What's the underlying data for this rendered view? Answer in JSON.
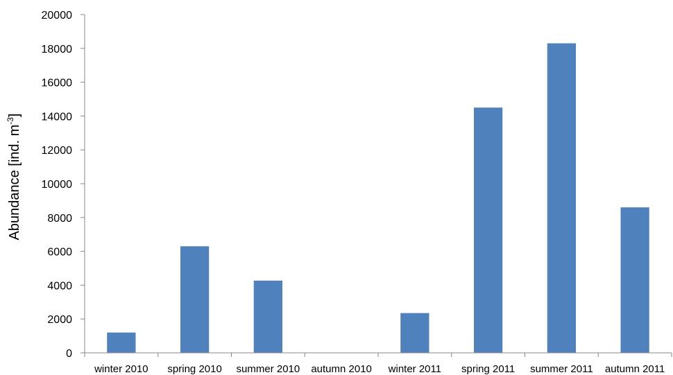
{
  "chart_data": {
    "type": "bar",
    "title": "",
    "xlabel": "",
    "ylabel": "Abundance [ind. m",
    "ylabel_superscript": "-3",
    "ylabel_suffix": "]",
    "ylim": [
      0,
      20000
    ],
    "yticks": [
      "0",
      "2000",
      "4000",
      "6000",
      "8000",
      "10000",
      "12000",
      "14000",
      "16000",
      "18000",
      "20000"
    ],
    "grid": false,
    "categories": [
      "winter 2010",
      "spring 2010",
      "summer 2010",
      "autumn 2010",
      "winter 2011",
      "spring 2011",
      "summer 2011",
      "autumn 2011"
    ],
    "values": [
      1200,
      6300,
      4270,
      0,
      2350,
      14500,
      18300,
      8600
    ],
    "bar_color": "#4f81bd"
  }
}
